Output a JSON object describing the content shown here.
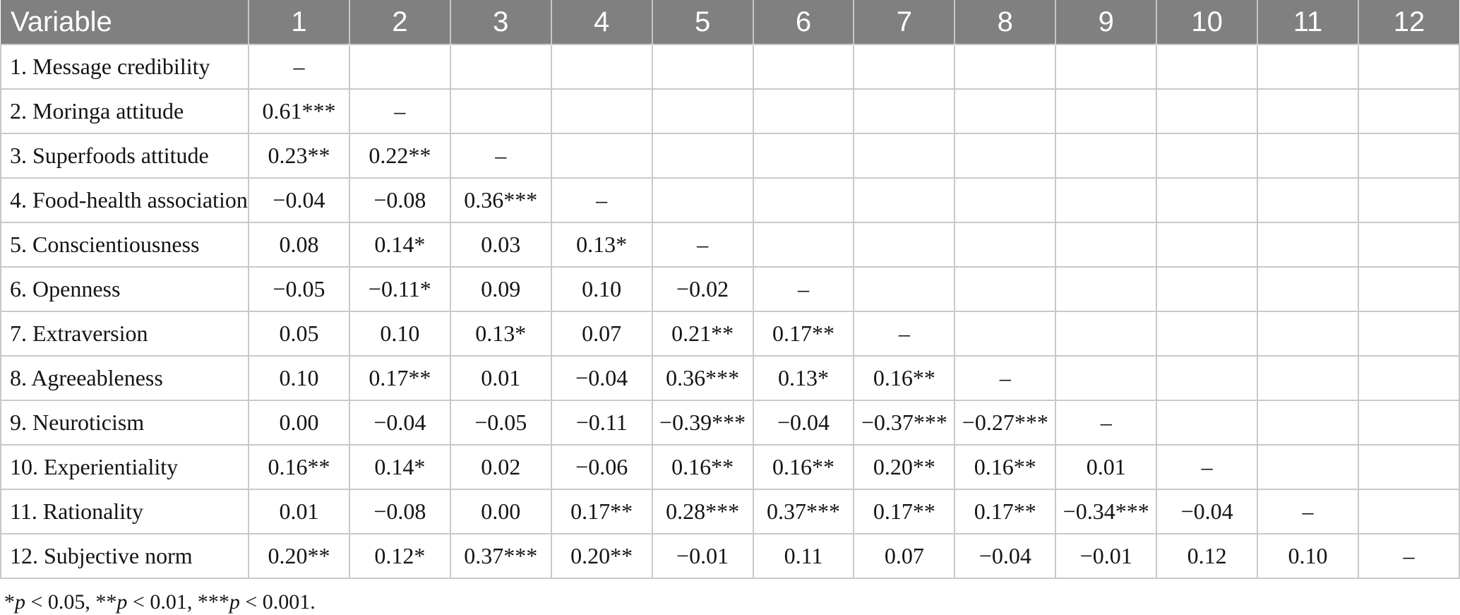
{
  "chart_data": {
    "type": "table",
    "columns": [
      "Variable",
      "1",
      "2",
      "3",
      "4",
      "5",
      "6",
      "7",
      "8",
      "9",
      "10",
      "11",
      "12"
    ],
    "rows": [
      {
        "label": "1. Message credibility",
        "values": [
          "–",
          "",
          "",
          "",
          "",
          "",
          "",
          "",
          "",
          "",
          "",
          ""
        ]
      },
      {
        "label": "2. Moringa attitude",
        "values": [
          "0.61***",
          "–",
          "",
          "",
          "",
          "",
          "",
          "",
          "",
          "",
          "",
          ""
        ]
      },
      {
        "label": "3. Superfoods attitude",
        "values": [
          "0.23**",
          "0.22**",
          "–",
          "",
          "",
          "",
          "",
          "",
          "",
          "",
          "",
          ""
        ]
      },
      {
        "label": "4. Food-health association",
        "values": [
          "−0.04",
          "−0.08",
          "0.36***",
          "–",
          "",
          "",
          "",
          "",
          "",
          "",
          "",
          ""
        ]
      },
      {
        "label": "5. Conscientiousness",
        "values": [
          "0.08",
          "0.14*",
          "0.03",
          "0.13*",
          "–",
          "",
          "",
          "",
          "",
          "",
          "",
          ""
        ]
      },
      {
        "label": "6. Openness",
        "values": [
          "−0.05",
          "−0.11*",
          "0.09",
          "0.10",
          "−0.02",
          "–",
          "",
          "",
          "",
          "",
          "",
          ""
        ]
      },
      {
        "label": "7. Extraversion",
        "values": [
          "0.05",
          "0.10",
          "0.13*",
          "0.07",
          "0.21**",
          "0.17**",
          "–",
          "",
          "",
          "",
          "",
          ""
        ]
      },
      {
        "label": "8. Agreeableness",
        "values": [
          "0.10",
          "0.17**",
          "0.01",
          "−0.04",
          "0.36***",
          "0.13*",
          "0.16**",
          "–",
          "",
          "",
          "",
          ""
        ]
      },
      {
        "label": "9. Neuroticism",
        "values": [
          "0.00",
          "−0.04",
          "−0.05",
          "−0.11",
          "−0.39***",
          "−0.04",
          "−0.37***",
          "−0.27***",
          "–",
          "",
          "",
          ""
        ]
      },
      {
        "label": "10. Experientiality",
        "values": [
          "0.16**",
          "0.14*",
          "0.02",
          "−0.06",
          "0.16**",
          "0.16**",
          "0.20**",
          "0.16**",
          "0.01",
          "–",
          "",
          ""
        ]
      },
      {
        "label": "11. Rationality",
        "values": [
          "0.01",
          "−0.08",
          "0.00",
          "0.17**",
          "0.28***",
          "0.37***",
          "0.17**",
          "0.17**",
          "−0.34***",
          "−0.04",
          "–",
          ""
        ]
      },
      {
        "label": "12. Subjective norm",
        "values": [
          "0.20**",
          "0.12*",
          "0.37***",
          "0.20**",
          "−0.01",
          "0.11",
          "0.07",
          "−0.04",
          "−0.01",
          "0.12",
          "0.10",
          "–"
        ]
      }
    ],
    "footnote_segments": [
      {
        "text": "*",
        "italic": false
      },
      {
        "text": "p",
        "italic": true
      },
      {
        "text": " < 0.05, **",
        "italic": false
      },
      {
        "text": "p",
        "italic": true
      },
      {
        "text": " < 0.01, ***",
        "italic": false
      },
      {
        "text": "p",
        "italic": true
      },
      {
        "text": " < 0.001.",
        "italic": false
      }
    ]
  },
  "colors": {
    "header_bg": "#808080",
    "header_text": "#ffffff",
    "grid_line": "#c9c9c9",
    "body_text": "#141414"
  }
}
